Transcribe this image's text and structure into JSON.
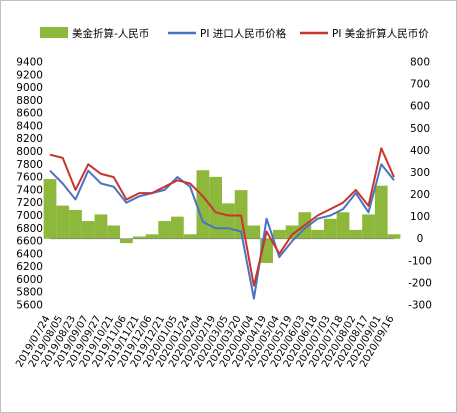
{
  "chart_data": {
    "type": "line",
    "title": "",
    "legend": {
      "placement": "top",
      "entries": [
        {
          "label": "美金折算-人民币",
          "kind": "area",
          "color": "#8DB83B"
        },
        {
          "label": "PI 进口人民币价格",
          "kind": "line",
          "color": "#4A73C2"
        },
        {
          "label": "PI 美金折算人民币价",
          "kind": "line",
          "color": "#C8352F"
        }
      ]
    },
    "y_left": {
      "min": 5600,
      "max": 9400,
      "step": 200,
      "ticks": [
        "5600",
        "5800",
        "6000",
        "6200",
        "6400",
        "6600",
        "6800",
        "7000",
        "7200",
        "7400",
        "7600",
        "7800",
        "8000",
        "8200",
        "8400",
        "8600",
        "8800",
        "9000",
        "9200",
        "9400"
      ]
    },
    "y_right": {
      "min": -300,
      "max": 800,
      "step": 100,
      "ticks": [
        "-300",
        "-200",
        "-100",
        "0",
        "100",
        "200",
        "300",
        "400",
        "500",
        "600",
        "700",
        "800"
      ]
    },
    "x_ticks": [
      "2019/07/24",
      "2019/08/05",
      "2019/08/23",
      "2019/09/07",
      "2019/09/27",
      "2019/10/21",
      "2019/11/06",
      "2019/11/21",
      "2019/12/06",
      "2019/12/21",
      "2020/01/05",
      "2020/01/24",
      "2020/02/04",
      "2020/02/19",
      "2020/03/05",
      "2020/03/20",
      "2020/04/04",
      "2020/04/19",
      "2020/05/04",
      "2020/05/19",
      "2020/06/03",
      "2020/06/18",
      "2020/07/03",
      "2020/07/18",
      "2020/08/02",
      "2020/08/17",
      "2020/09/01",
      "2020/09/16"
    ],
    "n_points": 28,
    "series": [
      {
        "name": "美金折算-人民币",
        "axis": "right",
        "type": "area",
        "color": "#8DB83B",
        "values": [
          270,
          150,
          130,
          80,
          110,
          60,
          -20,
          10,
          20,
          80,
          100,
          20,
          310,
          280,
          160,
          220,
          60,
          -110,
          40,
          60,
          120,
          40,
          90,
          120,
          40,
          110,
          240,
          20
        ]
      },
      {
        "name": "PI 进口人民币价格",
        "axis": "left",
        "type": "line",
        "color": "#4A73C2",
        "values": [
          7700,
          7500,
          7250,
          7700,
          7500,
          7450,
          7200,
          7300,
          7350,
          7400,
          7600,
          7450,
          6900,
          6800,
          6800,
          6750,
          5700,
          6950,
          6350,
          6600,
          6800,
          6950,
          7000,
          7100,
          7350,
          7050,
          7800,
          7550
        ]
      },
      {
        "name": "PI 美金折算人民币价",
        "axis": "left",
        "type": "line",
        "color": "#C8352F",
        "values": [
          7950,
          7900,
          7400,
          7800,
          7650,
          7600,
          7250,
          7350,
          7350,
          7450,
          7550,
          7500,
          7300,
          7050,
          7000,
          7000,
          5900,
          6750,
          6400,
          6700,
          6850,
          7000,
          7100,
          7200,
          7400,
          7150,
          8050,
          7600
        ]
      }
    ]
  }
}
